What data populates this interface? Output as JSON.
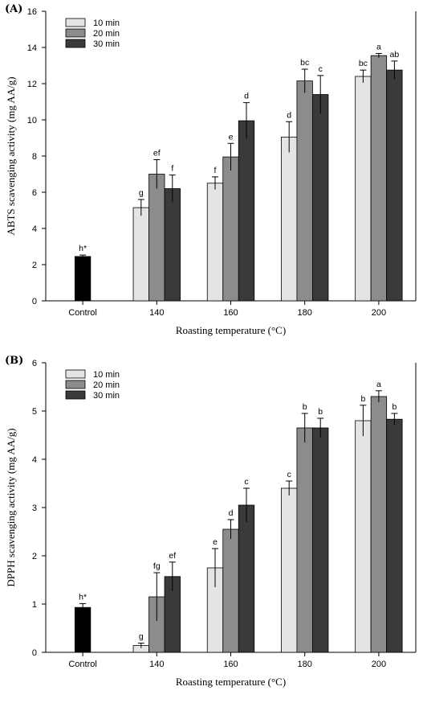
{
  "colors": {
    "control": "#000000",
    "10 min": "#e4e4e4",
    "20 min": "#8c8c8c",
    "30 min": "#3a3a3a"
  },
  "chart_data": [
    {
      "panel_label": "(A)",
      "type": "bar",
      "xlabel": "Roasting temperature (°C)",
      "ylabel": "ABTS scavenging activity (mg AA/g)",
      "ylim": [
        0,
        16
      ],
      "yticks": [
        0,
        2,
        4,
        6,
        8,
        10,
        12,
        14,
        16
      ],
      "legend_position": "top-left",
      "categories": [
        "Control",
        "140",
        "160",
        "180",
        "200"
      ],
      "control": {
        "value": 2.45,
        "error": 0.08,
        "label": "h*"
      },
      "series": [
        {
          "name": "10 min",
          "values": [
            null,
            5.15,
            6.5,
            9.05,
            12.4
          ],
          "errors": [
            null,
            0.45,
            0.35,
            0.85,
            0.35
          ],
          "labels": [
            null,
            "g",
            "f",
            "d",
            "bc"
          ]
        },
        {
          "name": "20 min",
          "values": [
            null,
            7.0,
            7.95,
            12.15,
            13.55
          ],
          "errors": [
            null,
            0.8,
            0.75,
            0.65,
            0.12
          ],
          "labels": [
            null,
            "ef",
            "e",
            "bc",
            "a"
          ]
        },
        {
          "name": "30 min",
          "values": [
            null,
            6.2,
            9.95,
            11.4,
            12.75
          ],
          "errors": [
            null,
            0.75,
            1.0,
            1.05,
            0.5
          ],
          "labels": [
            null,
            "f",
            "d",
            "c",
            "ab"
          ]
        }
      ]
    },
    {
      "panel_label": "(B)",
      "type": "bar",
      "xlabel": "Roasting temperature (°C)",
      "ylabel": "DPPH scavenging activity (mg AA/g)",
      "ylim": [
        0,
        6
      ],
      "yticks": [
        0,
        1,
        2,
        3,
        4,
        5,
        6
      ],
      "legend_position": "top-left",
      "categories": [
        "Control",
        "140",
        "160",
        "180",
        "200"
      ],
      "control": {
        "value": 0.93,
        "error": 0.08,
        "label": "h*"
      },
      "series": [
        {
          "name": "10 min",
          "values": [
            null,
            0.14,
            1.75,
            3.4,
            4.8
          ],
          "errors": [
            null,
            0.05,
            0.4,
            0.15,
            0.32
          ],
          "labels": [
            null,
            "g",
            "e",
            "c",
            "b"
          ]
        },
        {
          "name": "20 min",
          "values": [
            null,
            1.15,
            2.55,
            4.65,
            5.3
          ],
          "errors": [
            null,
            0.5,
            0.2,
            0.3,
            0.12
          ],
          "labels": [
            null,
            "fg",
            "d",
            "b",
            "a"
          ]
        },
        {
          "name": "30 min",
          "values": [
            null,
            1.57,
            3.05,
            4.65,
            4.83
          ],
          "errors": [
            null,
            0.3,
            0.35,
            0.2,
            0.12
          ],
          "labels": [
            null,
            "ef",
            "c",
            "b",
            "b"
          ]
        }
      ]
    }
  ]
}
